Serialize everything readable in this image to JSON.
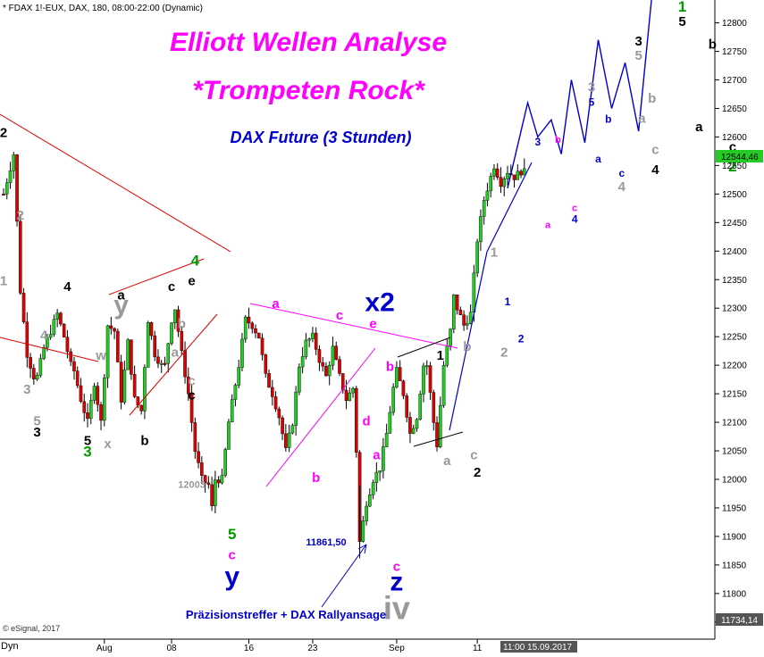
{
  "header": "* FDAX 1!-EUX, DAX, 180, 08:00-22:00 (Dynamic)",
  "title_line1": "Elliott Wellen Analyse",
  "title_line2": "*Trompeten Rock*",
  "subtitle": "DAX Future (3 Stunden)",
  "annotation_low": "11861,50",
  "annotation_bottom": "Präzisionstreffer + DAX Rallyansage",
  "copyright": "© eSignal, 2017",
  "bottom_left": "Dyn",
  "current_price": "12544,46",
  "bottom_price": "11734,14",
  "crosshair_time": "11:00 15.09.2017",
  "colors": {
    "up_candle": "#22cc22",
    "down_candle": "#dd0000",
    "title": "#ff00ff",
    "subtitle": "#0000cc",
    "projection": "#0000cc",
    "trendline_red": "#dd0000",
    "trendline_magenta": "#ff00ff",
    "price_box": "#22cc22"
  },
  "chart_data": {
    "type": "candlestick",
    "title": "Elliott Wellen Analyse",
    "ylim": [
      11720,
      12840
    ],
    "y_ticks": [
      11750,
      11800,
      11850,
      11900,
      11950,
      12000,
      12050,
      12100,
      12150,
      12200,
      12250,
      12300,
      12350,
      12400,
      12450,
      12500,
      12550,
      12600,
      12650,
      12700,
      12750,
      12800
    ],
    "y_tick_labels": [
      "11750",
      "11800",
      "11850",
      "11900",
      "11950",
      "12000",
      "12050",
      "12100",
      "12150",
      "12200",
      "12250",
      "12300",
      "12350",
      "12400",
      "12450",
      "12500",
      "12550",
      "12600",
      "12650",
      "12700",
      "12750",
      "12800"
    ],
    "bar_count": 133,
    "x_ticks": [
      {
        "label": "Aug",
        "bar": 30
      },
      {
        "label": "08",
        "bar": 50
      },
      {
        "label": "16",
        "bar": 73
      },
      {
        "label": "23",
        "bar": 92
      },
      {
        "label": "Sep",
        "bar": 117
      },
      {
        "label": "11",
        "bar": 141
      }
    ],
    "price_path": [
      [
        0,
        12500
      ],
      [
        3,
        12570
      ],
      [
        5,
        12330
      ],
      [
        7,
        12220
      ],
      [
        9,
        12180
      ],
      [
        10,
        12180
      ],
      [
        12,
        12230
      ],
      [
        14,
        12260
      ],
      [
        16,
        12290
      ],
      [
        18,
        12250
      ],
      [
        20,
        12200
      ],
      [
        21,
        12190
      ],
      [
        23,
        12140
      ],
      [
        25,
        12100
      ],
      [
        27,
        12170
      ],
      [
        29,
        12100
      ],
      [
        31,
        12270
      ],
      [
        33,
        12260
      ],
      [
        35,
        12140
      ],
      [
        37,
        12240
      ],
      [
        39,
        12140
      ],
      [
        41,
        12120
      ],
      [
        43,
        12280
      ],
      [
        45,
        12220
      ],
      [
        47,
        12200
      ],
      [
        48,
        12200
      ],
      [
        50,
        12280
      ],
      [
        51,
        12300
      ],
      [
        53,
        12220
      ],
      [
        55,
        12150
      ],
      [
        57,
        12050
      ],
      [
        59,
        12000
      ],
      [
        61,
        11990
      ],
      [
        62,
        11950
      ],
      [
        63,
        12000
      ],
      [
        65,
        12000
      ],
      [
        67,
        12100
      ],
      [
        70,
        12200
      ],
      [
        72,
        12280
      ],
      [
        74,
        12270
      ],
      [
        76,
        12250
      ],
      [
        78,
        12180
      ],
      [
        80,
        12150
      ],
      [
        82,
        12110
      ],
      [
        84,
        12050
      ],
      [
        86,
        12100
      ],
      [
        88,
        12200
      ],
      [
        90,
        12240
      ],
      [
        92,
        12250
      ],
      [
        94,
        12210
      ],
      [
        96,
        12180
      ],
      [
        98,
        12230
      ],
      [
        100,
        12180
      ],
      [
        102,
        12140
      ],
      [
        104,
        12160
      ],
      [
        105,
        12050
      ],
      [
        106,
        11890
      ],
      [
        108,
        11960
      ],
      [
        110,
        12000
      ],
      [
        112,
        12020
      ],
      [
        114,
        12080
      ],
      [
        116,
        12160
      ],
      [
        117,
        12190
      ],
      [
        119,
        12150
      ],
      [
        121,
        12080
      ],
      [
        123,
        12110
      ],
      [
        125,
        12200
      ],
      [
        126,
        12200
      ],
      [
        128,
        12100
      ],
      [
        129,
        12060
      ],
      [
        131,
        12200
      ],
      [
        133,
        12260
      ],
      [
        134,
        12320
      ],
      [
        135,
        12300
      ],
      [
        137,
        12270
      ],
      [
        139,
        12290
      ],
      [
        141,
        12420
      ],
      [
        143,
        12490
      ],
      [
        145,
        12530
      ],
      [
        146,
        12550
      ],
      [
        148,
        12520
      ],
      [
        150,
        12540
      ],
      [
        152,
        12530
      ],
      [
        154,
        12540
      ],
      [
        155,
        12544.46
      ]
    ],
    "last_price": 12544.46,
    "low_marked": 11861.5,
    "projection": [
      [
        150,
        12510
      ],
      [
        156,
        12660
      ],
      [
        159,
        12600
      ],
      [
        163,
        12630
      ],
      [
        166,
        12570
      ],
      [
        169,
        12700
      ],
      [
        173,
        12590
      ],
      [
        177,
        12770
      ],
      [
        181,
        12650
      ],
      [
        185,
        12730
      ],
      [
        189,
        12610
      ],
      [
        193,
        12850
      ]
    ],
    "wave_labels": [
      {
        "text": "2",
        "bar": 0,
        "price": 12600,
        "color": "#000000"
      },
      {
        "text": "2",
        "bar": 5,
        "price": 12455,
        "color": "#999999"
      },
      {
        "text": "1",
        "bar": 0,
        "price": 12340,
        "color": "#999999"
      },
      {
        "text": "4",
        "bar": 12,
        "price": 12245,
        "color": "#999999"
      },
      {
        "text": "4",
        "bar": 19,
        "price": 12330,
        "color": "#000000"
      },
      {
        "text": "3",
        "bar": 7,
        "price": 12150,
        "color": "#999999"
      },
      {
        "text": "5",
        "bar": 10,
        "price": 12095,
        "color": "#999999"
      },
      {
        "text": "3",
        "bar": 10,
        "price": 12075,
        "color": "#000000"
      },
      {
        "text": "w",
        "bar": 29,
        "price": 12210,
        "color": "#999999"
      },
      {
        "text": "5",
        "bar": 25,
        "price": 12060,
        "color": "#000000"
      },
      {
        "text": "3",
        "bar": 25,
        "price": 12040,
        "color": "#009900"
      },
      {
        "text": "x",
        "bar": 31,
        "price": 12055,
        "color": "#999999"
      },
      {
        "text": "a",
        "bar": 35,
        "price": 12315,
        "color": "#000000"
      },
      {
        "text": "y",
        "bar": 35,
        "price": 12290,
        "color": "#999999"
      },
      {
        "text": "b",
        "bar": 42,
        "price": 12060,
        "color": "#000000"
      },
      {
        "text": "c",
        "bar": 50,
        "price": 12330,
        "color": "#000000"
      },
      {
        "text": "4",
        "bar": 57,
        "price": 12375,
        "color": "#009900"
      },
      {
        "text": "e",
        "bar": 56,
        "price": 12340,
        "color": "#000000"
      },
      {
        "text": "b",
        "bar": 53,
        "price": 12265,
        "color": "#999999"
      },
      {
        "text": "a",
        "bar": 51,
        "price": 12215,
        "color": "#999999"
      },
      {
        "text": "c",
        "bar": 56,
        "price": 12165,
        "color": "#999999"
      },
      {
        "text": "c",
        "bar": 56,
        "price": 12140,
        "color": "#000000"
      },
      {
        "text": "12003",
        "bar": 56,
        "price": 11985,
        "color": "#999999"
      },
      {
        "text": "5",
        "bar": 68,
        "price": 11895,
        "color": "#009900"
      },
      {
        "text": "c",
        "bar": 68,
        "price": 11860,
        "color": "#ff00ff"
      },
      {
        "text": "y",
        "bar": 68,
        "price": 11815,
        "color": "#0000cc"
      },
      {
        "text": "a",
        "bar": 81,
        "price": 12300,
        "color": "#ff00ff"
      },
      {
        "text": "b",
        "bar": 93,
        "price": 11995,
        "color": "#ff00ff"
      },
      {
        "text": "c",
        "bar": 100,
        "price": 12280,
        "color": "#ff00ff"
      },
      {
        "text": "x2",
        "bar": 112,
        "price": 12295,
        "color": "#0000cc"
      },
      {
        "text": "e",
        "bar": 110,
        "price": 12265,
        "color": "#ff00ff"
      },
      {
        "text": "b",
        "bar": 115,
        "price": 12190,
        "color": "#ff00ff"
      },
      {
        "text": "d",
        "bar": 108,
        "price": 12095,
        "color": "#ff00ff"
      },
      {
        "text": "a",
        "bar": 111,
        "price": 12035,
        "color": "#ff00ff"
      },
      {
        "text": "c",
        "bar": 117,
        "price": 11840,
        "color": "#ff00ff"
      },
      {
        "text": "z",
        "bar": 117,
        "price": 11805,
        "color": "#0000cc"
      },
      {
        "text": "iv",
        "bar": 117,
        "price": 11755,
        "color": "#999999"
      },
      {
        "text": "1",
        "bar": 130,
        "price": 12210,
        "color": "#000000"
      },
      {
        "text": "b",
        "bar": 138,
        "price": 12225,
        "color": "#999999"
      },
      {
        "text": "a",
        "bar": 132,
        "price": 12025,
        "color": "#999999"
      },
      {
        "text": "c",
        "bar": 140,
        "price": 12035,
        "color": "#999999"
      },
      {
        "text": "2",
        "bar": 141,
        "price": 12005,
        "color": "#000000"
      },
      {
        "text": "1",
        "bar": 146,
        "price": 12390,
        "color": "#999999"
      },
      {
        "text": "1",
        "bar": 150,
        "price": 12305,
        "color": "#0000cc"
      },
      {
        "text": "2",
        "bar": 154,
        "price": 12240,
        "color": "#0000cc"
      },
      {
        "text": "2",
        "bar": 149,
        "price": 12215,
        "color": "#999999"
      },
      {
        "text": "3",
        "bar": 159,
        "price": 12585,
        "color": "#0000cc"
      },
      {
        "text": "b",
        "bar": 165,
        "price": 12590,
        "color": "#ff00ff"
      },
      {
        "text": "a",
        "bar": 162,
        "price": 12440,
        "color": "#ff00ff"
      },
      {
        "text": "c",
        "bar": 170,
        "price": 12470,
        "color": "#ff00ff"
      },
      {
        "text": "4",
        "bar": 170,
        "price": 12450,
        "color": "#0000cc"
      },
      {
        "text": "3",
        "bar": 175,
        "price": 12680,
        "color": "#999999"
      },
      {
        "text": "5",
        "bar": 175,
        "price": 12655,
        "color": "#0000cc"
      },
      {
        "text": "b",
        "bar": 180,
        "price": 12625,
        "color": "#0000cc"
      },
      {
        "text": "a",
        "bar": 177,
        "price": 12555,
        "color": "#0000cc"
      },
      {
        "text": "c",
        "bar": 184,
        "price": 12530,
        "color": "#0000cc"
      },
      {
        "text": "4",
        "bar": 184,
        "price": 12505,
        "color": "#999999"
      },
      {
        "text": "3",
        "bar": 189,
        "price": 12760,
        "color": "#000000"
      },
      {
        "text": "5",
        "bar": 189,
        "price": 12735,
        "color": "#999999"
      },
      {
        "text": "b",
        "bar": 193,
        "price": 12660,
        "color": "#999999"
      },
      {
        "text": "a",
        "bar": 190,
        "price": 12625,
        "color": "#999999"
      },
      {
        "text": "c",
        "bar": 194,
        "price": 12570,
        "color": "#999999"
      },
      {
        "text": "4",
        "bar": 194,
        "price": 12535,
        "color": "#000000"
      },
      {
        "text": "1",
        "bar": 202,
        "price": 12820,
        "color": "#009900"
      },
      {
        "text": "5",
        "bar": 202,
        "price": 12795,
        "color": "#000000"
      },
      {
        "text": "b",
        "bar": 211,
        "price": 12755,
        "color": "#000000"
      },
      {
        "text": "a",
        "bar": 207,
        "price": 12610,
        "color": "#000000"
      },
      {
        "text": "c",
        "bar": 217,
        "price": 12575,
        "color": "#000000"
      },
      {
        "text": "2",
        "bar": 217,
        "price": 12540,
        "color": "#009900"
      }
    ]
  }
}
